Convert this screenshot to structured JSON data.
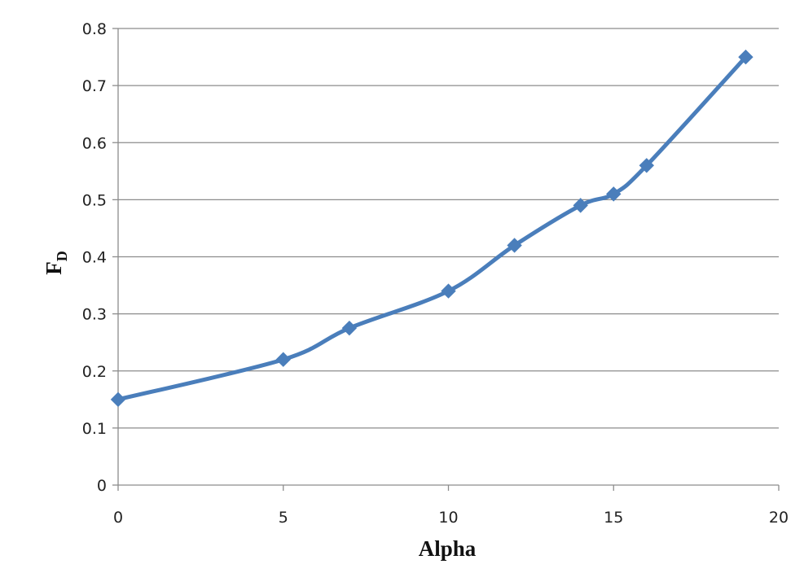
{
  "chart_data": {
    "type": "line",
    "title": "",
    "xlabel": "Alpha",
    "ylabel": "F",
    "ylabel_subscript": "D",
    "xlim": [
      0,
      20
    ],
    "ylim": [
      0,
      0.8
    ],
    "xticks": [
      0,
      5,
      10,
      15,
      20
    ],
    "yticks": [
      0,
      0.1,
      0.2,
      0.3,
      0.4,
      0.5,
      0.6,
      0.7,
      0.8
    ],
    "xtick_labels": [
      "0",
      "5",
      "10",
      "15",
      "20"
    ],
    "ytick_labels": [
      "0",
      "0.1",
      "0.2",
      "0.3",
      "0.4",
      "0.5",
      "0.6",
      "0.7",
      "0.8"
    ],
    "grid": "horizontal",
    "legend": "none",
    "marker": "diamond",
    "smooth": true,
    "series": [
      {
        "color": "#4a7ebb",
        "x": [
          0,
          5,
          7,
          10,
          12,
          14,
          15,
          16,
          19
        ],
        "y": [
          0.15,
          0.22,
          0.275,
          0.34,
          0.42,
          0.49,
          0.51,
          0.56,
          0.75
        ]
      }
    ]
  }
}
